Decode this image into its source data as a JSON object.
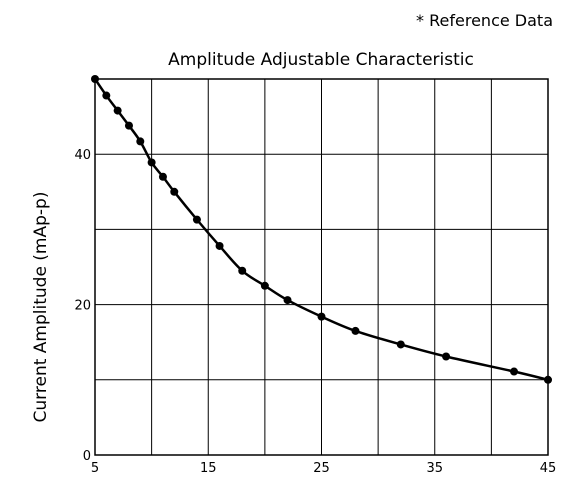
{
  "note": "* Reference Data",
  "chart_data": {
    "type": "line",
    "title": "Amplitude Adjustable Characteristic",
    "xlabel": "",
    "ylabel": "Current Amplitude   (mAp-p)",
    "xlim": [
      5,
      45
    ],
    "ylim": [
      0,
      50
    ],
    "x_ticks": [
      5,
      15,
      25,
      35,
      45
    ],
    "y_ticks": [
      0,
      20,
      40
    ],
    "x_grid_step": 5,
    "y_grid_step": 10,
    "grid": true,
    "series": [
      {
        "color": "#000000",
        "marker": "circle",
        "x": [
          5,
          6,
          7,
          8,
          9,
          10,
          11,
          12,
          14,
          16,
          18,
          20,
          22,
          25,
          28,
          32,
          36,
          42,
          45
        ],
        "y": [
          50,
          47.8,
          45.8,
          43.8,
          41.7,
          38.9,
          37.0,
          35.0,
          31.3,
          27.8,
          24.5,
          22.5,
          20.6,
          18.4,
          16.5,
          14.7,
          13.1,
          11.1,
          10.0
        ]
      }
    ]
  }
}
